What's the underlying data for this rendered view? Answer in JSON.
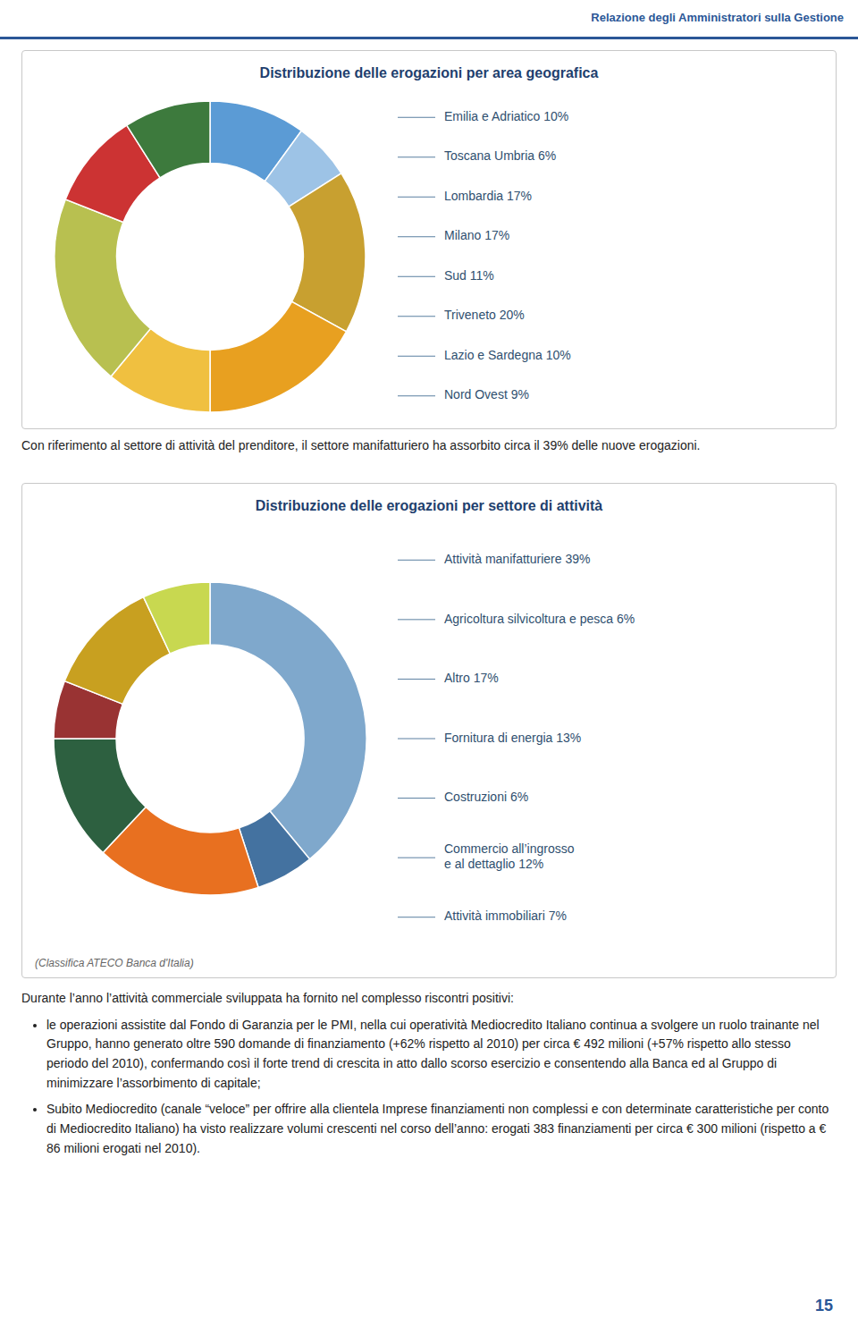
{
  "chart_data": [
    {
      "type": "donut",
      "title": "Distribuzione delle erogazioni per area geografica",
      "categories": [
        "Emilia e Adriatico 10%",
        "Toscana Umbria 6%",
        "Lombardia 17%",
        "Milano 17%",
        "Sud 11%",
        "Triveneto 20%",
        "Lazio e Sardegna 10%",
        "Nord Ovest 9%"
      ],
      "values": [
        10,
        6,
        17,
        17,
        11,
        20,
        10,
        9
      ],
      "colors": [
        "#5b9bd5",
        "#9dc3e6",
        "#c8a030",
        "#e8a020",
        "#f0c040",
        "#b8c050",
        "#cc3333",
        "#3d7a3d"
      ]
    },
    {
      "type": "donut",
      "title": "Distribuzione delle erogazioni per settore di attività",
      "categories": [
        "Attività manifatturiere 39%",
        "Agricoltura silvicoltura e pesca 6%",
        "Altro 17%",
        "Fornitura di energia 13%",
        "Costruzioni 6%",
        "Commercio all’ingrosso\ne al dettaglio 12%",
        "Attività immobiliari 7%"
      ],
      "values": [
        39,
        6,
        17,
        13,
        6,
        12,
        7
      ],
      "colors": [
        "#7fa8cc",
        "#4472a0",
        "#e87020",
        "#2d6040",
        "#993333",
        "#c8a020",
        "#c8d850"
      ],
      "annotations": [
        "(Classifica ATECO Banca d'Italia)"
      ]
    }
  ],
  "page": {
    "header": "Relazione degli Amministratori sulla Gestione",
    "text_between": "Con riferimento al settore di attività del prenditore, il settore manifatturiero ha assorbito circa il 39% delle nuove erogazioni.",
    "intro": "Durante l’anno l’attività commerciale sviluppata ha fornito nel complesso riscontri positivi:",
    "bullets": [
      "le operazioni assistite dal Fondo di Garanzia per le PMI, nella cui operatività Mediocredito Italiano continua a svolgere un ruolo trainante nel Gruppo, hanno generato oltre 590 domande di finanziamento (+62% rispetto al 2010) per circa € 492 milioni (+57% rispetto allo stesso periodo del 2010), confermando così il forte trend di crescita in atto dallo scorso esercizio e consentendo alla Banca ed al Gruppo di minimizzare l’assorbimento di capitale;",
      "Subito Mediocredito (canale “veloce” per offrire alla clientela Imprese finanziamenti non complessi e con determinate caratteristiche per conto di Mediocredito Italiano) ha visto realizzare volumi crescenti nel corso dell’anno: erogati 383 finanziamenti per circa € 300 milioni (rispetto a € 86 milioni erogati nel 2010)."
    ],
    "page_number": "15"
  }
}
